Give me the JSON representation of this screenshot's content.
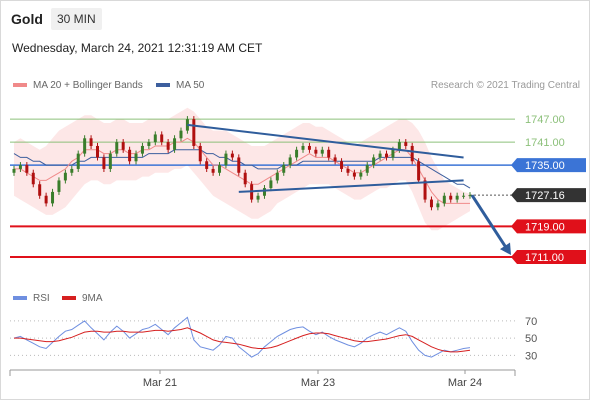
{
  "header": {
    "symbol": "Gold",
    "timeframe": "30 MIN",
    "datetime": "Wednesday, March 24, 2021 12:31:19 AM CET"
  },
  "legend": {
    "ma20": "MA 20 + Bollinger Bands",
    "ma50": "MA 50",
    "credit": "Research © 2021 Trading Central"
  },
  "rsi_legend": {
    "rsi": "RSI",
    "ma9": "9MA"
  },
  "colors": {
    "ma20": "#f08a8a",
    "ma50": "#3d5f9e",
    "bands": "#fde4e4",
    "resistance_green": "#8cc07a",
    "pivot_blue": "#3b74d6",
    "support_red": "#e0101a",
    "price_badge": "#333333",
    "arrow": "#2f5d9c",
    "rsi": "#6f8fe0",
    "rsi_ma": "#d62020",
    "candle_up": "#3a7d2b",
    "candle_down": "#b01010"
  },
  "chart_data": {
    "type": "candlestick",
    "x_ticks": [
      "Mar 21",
      "Mar 23",
      "Mar 24"
    ],
    "price_range": [
      1705,
      1752
    ],
    "levels": [
      {
        "label": "1747.00",
        "value": 1747,
        "kind": "resistance"
      },
      {
        "label": "1741.00",
        "value": 1741,
        "kind": "resistance"
      },
      {
        "label": "1735.00",
        "value": 1735,
        "kind": "pivot"
      },
      {
        "label": "1727.16",
        "value": 1727.16,
        "kind": "current"
      },
      {
        "label": "1719.00",
        "value": 1719,
        "kind": "support"
      },
      {
        "label": "1711.00",
        "value": 1711,
        "kind": "support"
      }
    ],
    "closes": [
      1734,
      1735,
      1733,
      1730,
      1727,
      1725,
      1728,
      1731,
      1733,
      1734,
      1738,
      1742,
      1740,
      1737,
      1734,
      1738,
      1741,
      1739,
      1736,
      1738,
      1740,
      1741,
      1743,
      1741,
      1739,
      1742,
      1744,
      1747,
      1740,
      1736,
      1734,
      1733,
      1735,
      1738,
      1737,
      1733,
      1730,
      1726,
      1727,
      1729,
      1731,
      1733,
      1735,
      1737,
      1739,
      1740,
      1739,
      1738,
      1739,
      1737,
      1736,
      1734,
      1733,
      1732,
      1733,
      1735,
      1737,
      1738,
      1737,
      1739,
      1741,
      1740,
      1736,
      1731,
      1726,
      1724,
      1725,
      1727,
      1726,
      1727,
      1727,
      1727.16
    ],
    "upper_band": [
      1741,
      1742,
      1741,
      1740,
      1739,
      1740,
      1742,
      1744,
      1745,
      1746,
      1747,
      1748,
      1748,
      1747,
      1746,
      1746,
      1747,
      1747,
      1746,
      1746,
      1746,
      1747,
      1747,
      1747,
      1747,
      1748,
      1749,
      1750,
      1749,
      1747,
      1745,
      1744,
      1744,
      1744,
      1743,
      1742,
      1741,
      1740,
      1740,
      1740,
      1741,
      1742,
      1743,
      1744,
      1745,
      1746,
      1746,
      1745,
      1745,
      1744,
      1743,
      1742,
      1741,
      1740,
      1741,
      1742,
      1743,
      1744,
      1745,
      1746,
      1747,
      1747,
      1746,
      1744,
      1741,
      1737,
      1734,
      1731,
      1730,
      1729,
      1728,
      1727.5
    ],
    "lower_band": [
      1727,
      1726,
      1725,
      1724,
      1723,
      1722,
      1722,
      1723,
      1724,
      1726,
      1728,
      1730,
      1731,
      1731,
      1730,
      1730,
      1731,
      1731,
      1731,
      1731,
      1732,
      1732,
      1733,
      1733,
      1733,
      1734,
      1734,
      1735,
      1733,
      1731,
      1729,
      1727,
      1726,
      1725,
      1724,
      1723,
      1722,
      1721,
      1721,
      1722,
      1723,
      1725,
      1726,
      1727,
      1728,
      1729,
      1730,
      1730,
      1730,
      1730,
      1729,
      1728,
      1727,
      1726,
      1726,
      1727,
      1728,
      1729,
      1729,
      1730,
      1731,
      1731,
      1728,
      1724,
      1720,
      1718,
      1718,
      1719,
      1720,
      1721,
      1722,
      1723
    ],
    "ma20": [
      1734,
      1734,
      1733,
      1732,
      1731,
      1731,
      1732,
      1733,
      1734,
      1736,
      1737,
      1739,
      1739,
      1739,
      1738,
      1738,
      1739,
      1739,
      1738,
      1738,
      1739,
      1739,
      1740,
      1740,
      1740,
      1741,
      1741,
      1742,
      1741,
      1739,
      1737,
      1735,
      1735,
      1734,
      1733,
      1732,
      1731,
      1730,
      1730,
      1731,
      1732,
      1733,
      1734,
      1735,
      1736,
      1737,
      1738,
      1737,
      1737,
      1737,
      1736,
      1735,
      1734,
      1733,
      1733,
      1734,
      1735,
      1736,
      1737,
      1738,
      1739,
      1739,
      1737,
      1734,
      1731,
      1728,
      1726,
      1725,
      1725,
      1725,
      1725,
      1725
    ],
    "ma50": [
      1738,
      1737,
      1737,
      1736,
      1736,
      1735,
      1735,
      1735,
      1735,
      1735,
      1736,
      1736,
      1737,
      1737,
      1737,
      1737,
      1737,
      1737,
      1737,
      1737,
      1737,
      1738,
      1738,
      1738,
      1738,
      1739,
      1739,
      1739,
      1739,
      1739,
      1738,
      1738,
      1737,
      1737,
      1736,
      1736,
      1735,
      1735,
      1734,
      1734,
      1734,
      1734,
      1735,
      1735,
      1735,
      1736,
      1736,
      1736,
      1736,
      1736,
      1736,
      1736,
      1736,
      1736,
      1736,
      1736,
      1736,
      1737,
      1737,
      1737,
      1737,
      1737,
      1737,
      1736,
      1735,
      1734,
      1733,
      1732,
      1731,
      1730,
      1730,
      1729
    ],
    "trendlines": [
      {
        "from": [
          27,
          1745.5
        ],
        "to": [
          70,
          1737
        ]
      },
      {
        "from": [
          35,
          1728
        ],
        "to": [
          70,
          1731
        ]
      }
    ],
    "rsi": {
      "ticks": [
        30,
        50,
        70
      ],
      "range": [
        20,
        78
      ],
      "values": [
        50,
        52,
        48,
        44,
        40,
        38,
        45,
        52,
        58,
        60,
        65,
        70,
        62,
        55,
        48,
        57,
        64,
        58,
        50,
        55,
        60,
        62,
        66,
        60,
        54,
        62,
        68,
        74,
        48,
        40,
        38,
        36,
        42,
        52,
        50,
        40,
        34,
        28,
        32,
        40,
        46,
        52,
        56,
        60,
        62,
        63,
        58,
        54,
        57,
        52,
        48,
        45,
        42,
        40,
        44,
        50,
        54,
        57,
        54,
        58,
        62,
        58,
        46,
        36,
        30,
        28,
        32,
        36,
        34,
        36,
        38,
        39
      ],
      "ma9": [
        50,
        50,
        49,
        48,
        47,
        46,
        46,
        47,
        49,
        51,
        54,
        57,
        58,
        58,
        57,
        57,
        58,
        58,
        57,
        57,
        57,
        58,
        59,
        59,
        58,
        59,
        60,
        62,
        59,
        56,
        52,
        48,
        46,
        45,
        44,
        43,
        41,
        39,
        38,
        38,
        39,
        41,
        44,
        47,
        50,
        53,
        55,
        56,
        56,
        55,
        53,
        51,
        49,
        47,
        46,
        46,
        47,
        48,
        49,
        51,
        53,
        54,
        52,
        48,
        44,
        40,
        37,
        35,
        34,
        34,
        35,
        36
      ]
    }
  }
}
